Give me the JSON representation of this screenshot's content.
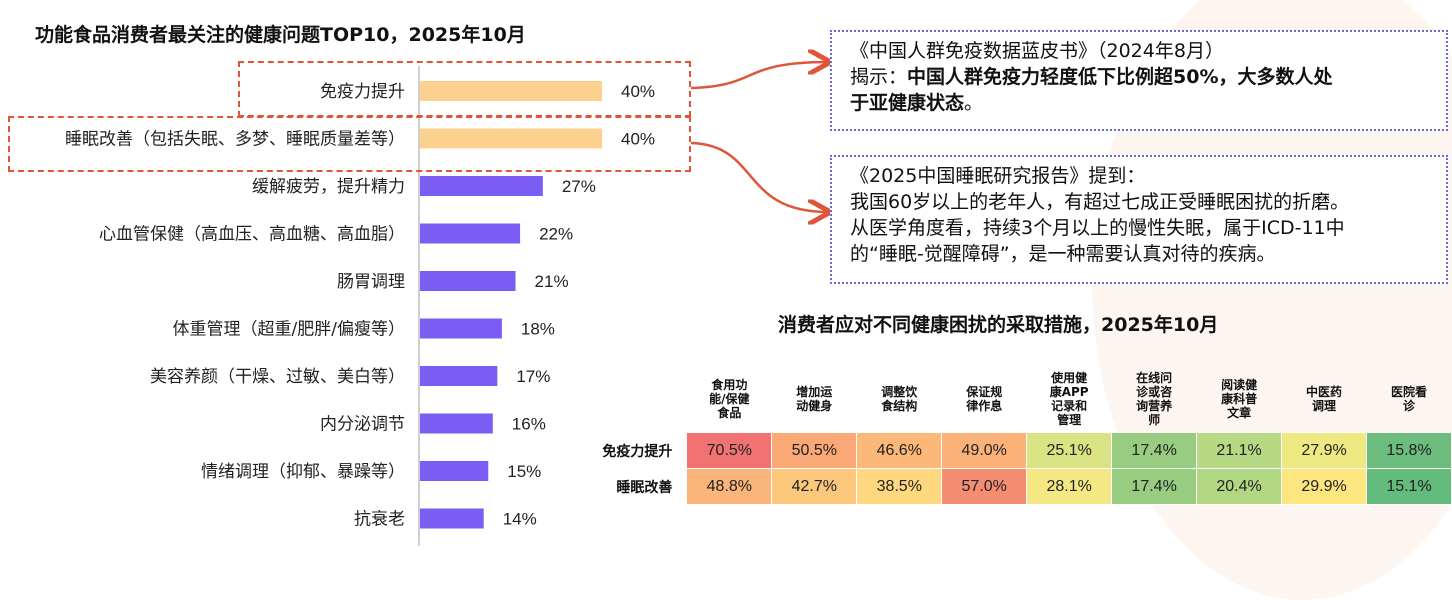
{
  "left_chart": {
    "title": "功能食品消费者最关注的健康问题TOP10，2025年10月"
  },
  "chart_data": [
    {
      "type": "bar",
      "orientation": "horizontal",
      "title": "功能食品消费者最关注的健康问题TOP10，2025年10月",
      "categories": [
        "免疫力提升",
        "睡眠改善（包括失眠、多梦、睡眠质量差等）",
        "缓解疲劳，提升精力",
        "心血管保健（高血压、高血糖、高血脂）",
        "肠胃调理",
        "体重管理（超重/肥胖/偏瘦等）",
        "美容养颜（干燥、过敏、美白等）",
        "内分泌调节",
        "情绪调理（抑郁、暴躁等）",
        "抗衰老"
      ],
      "values": [
        40,
        40,
        27,
        22,
        21,
        18,
        17,
        16,
        15,
        14
      ],
      "value_labels": [
        "40%",
        "40%",
        "27%",
        "22%",
        "21%",
        "18%",
        "17%",
        "16%",
        "15%",
        "14%"
      ],
      "bar_colors": [
        "#fcd08e",
        "#fcd08e",
        "#7b5cf5",
        "#7b5cf5",
        "#7b5cf5",
        "#7b5cf5",
        "#7b5cf5",
        "#7b5cf5",
        "#7b5cf5",
        "#7b5cf5"
      ],
      "highlighted": [
        "免疫力提升",
        "睡眠改善（包括失眠、多梦、睡眠质量差等）"
      ],
      "xlim": [
        0,
        100
      ]
    },
    {
      "type": "table",
      "title": "消费者应对不同健康困扰的采取措施，2025年10月",
      "columns": [
        "食用功能/保健食品",
        "增加运动健身",
        "调整饮食结构",
        "保证规律作息",
        "使用健康APP记录和管理",
        "在线问诊或咨询营养师",
        "阅读健康科普文章",
        "中医药调理",
        "医院看诊"
      ],
      "column_lines": [
        [
          "食用功",
          "能/保健",
          "食品"
        ],
        [
          "增加运",
          "动健身"
        ],
        [
          "调整饮",
          "食结构"
        ],
        [
          "保证规",
          "律作息"
        ],
        [
          "使用健",
          "康APP",
          "记录和",
          "管理"
        ],
        [
          "在线问",
          "诊或咨",
          "询营养",
          "师"
        ],
        [
          "阅读健",
          "康科普",
          "文章"
        ],
        [
          "中医药",
          "调理"
        ],
        [
          "医院看",
          "诊"
        ]
      ],
      "rows": [
        {
          "name": "免疫力提升",
          "values": [
            "70.5%",
            "50.5%",
            "46.6%",
            "49.0%",
            "25.1%",
            "17.4%",
            "21.1%",
            "27.9%",
            "15.8%"
          ],
          "colors": [
            "#f07371",
            "#f9a876",
            "#fbb878",
            "#fbb178",
            "#d9e384",
            "#97cc81",
            "#b8d984",
            "#eee882",
            "#6cbd7d"
          ]
        },
        {
          "name": "睡眠改善",
          "values": [
            "48.8%",
            "42.7%",
            "38.5%",
            "57.0%",
            "28.1%",
            "17.4%",
            "20.4%",
            "29.9%",
            "15.1%"
          ],
          "colors": [
            "#fbb479",
            "#fdc77c",
            "#fed77f",
            "#f58d73",
            "#f3e884",
            "#97cc81",
            "#b2d782",
            "#fde580",
            "#63bb7c"
          ]
        }
      ]
    }
  ],
  "notes": {
    "immunity": {
      "line1": "《中国人群免疫数据蓝皮书》（2024年8月）",
      "line2_prefix": "揭示：",
      "line2_bold": "中国人群免疫力轻度低下比例超50%，大多数人处",
      "line3_bold": "于亚健康状态",
      "line3_suffix": "。"
    },
    "sleep": {
      "line1": "《2025中国睡眠研究报告》提到：",
      "line2": "我国60岁以上的老年人，有超过七成正受睡眠困扰的折磨。",
      "line3": "从医学角度看，持续3个月以上的慢性失眠，属于ICD-11中",
      "line4": "的“睡眠-觉醒障碍”，是一种需要认真对待的疾病。"
    }
  },
  "colors": {
    "accent_dash": "#e0553a",
    "note_border": "#6a6ad6",
    "bar_purple": "#7b5cf5",
    "bar_orange": "#fcd08e"
  }
}
